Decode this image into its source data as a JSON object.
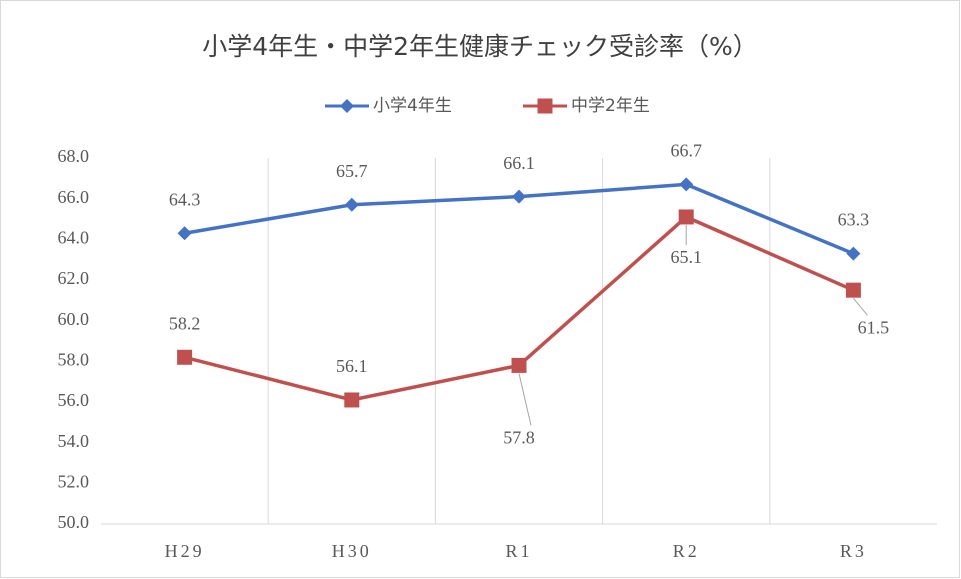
{
  "chart_data": {
    "type": "line",
    "title": "小学4年生・中学2年生健康チェック受診率（%）",
    "categories": [
      "H29",
      "H30",
      "R1",
      "R2",
      "R3"
    ],
    "series": [
      {
        "name": "小学4年生",
        "color": "#4472c4",
        "marker": "diamond",
        "values": [
          64.3,
          65.7,
          66.1,
          66.7,
          63.3
        ]
      },
      {
        "name": "中学2年生",
        "color": "#c0504d",
        "marker": "square",
        "values": [
          58.2,
          56.1,
          57.8,
          65.1,
          61.5
        ]
      }
    ],
    "ylim": [
      50,
      68
    ],
    "yticks": [
      {
        "value": 50,
        "label": "50.0"
      },
      {
        "value": 52,
        "label": "52.0"
      },
      {
        "value": 54,
        "label": "54.0"
      },
      {
        "value": 56,
        "label": "56.0"
      },
      {
        "value": 58,
        "label": "58.0"
      },
      {
        "value": 60,
        "label": "60.0"
      },
      {
        "value": 62,
        "label": "62.0"
      },
      {
        "value": 64,
        "label": "64.0"
      },
      {
        "value": 66,
        "label": "66.0"
      },
      {
        "value": 68,
        "label": "68.0"
      }
    ],
    "grid": true,
    "legend": "top"
  }
}
